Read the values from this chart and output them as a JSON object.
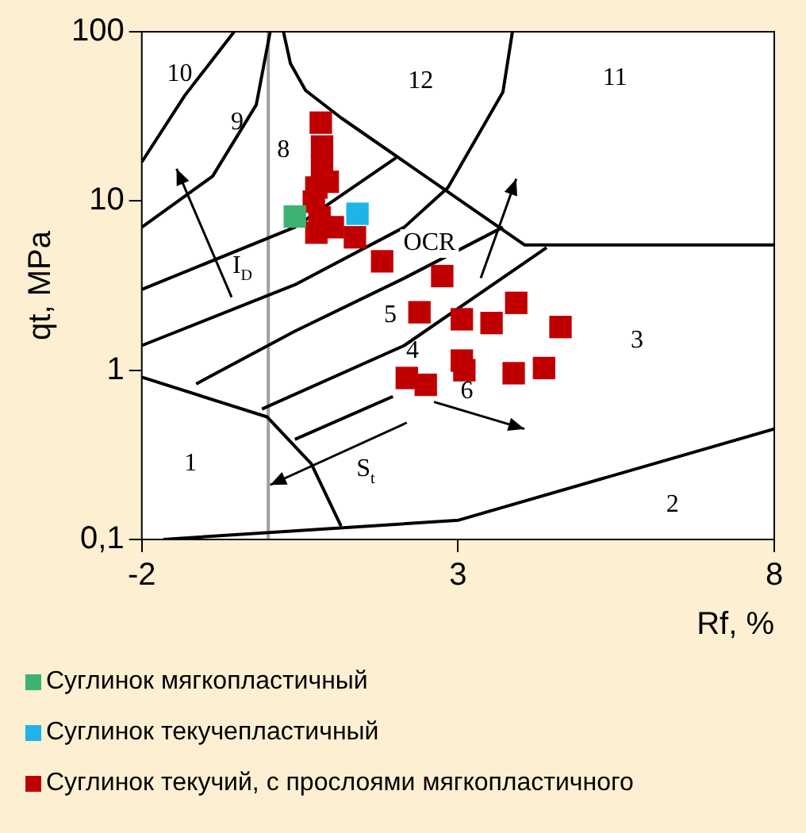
{
  "chart_data": {
    "type": "scatter",
    "xlabel": "Rf, %",
    "ylabel": "qt, MPa",
    "log": "y",
    "xlim": [
      -2,
      8
    ],
    "xticks": [
      -2,
      3,
      8
    ],
    "ylim": [
      0.1,
      100
    ],
    "yticks": [
      {
        "value": 0.1,
        "label": "0,1"
      },
      1,
      10,
      100
    ],
    "legend": "bottom",
    "marker": "square",
    "ref_lines": [
      {
        "axis": "x",
        "value": 0,
        "label": null,
        "color": "#a0a0a0"
      }
    ],
    "annotations": [
      "10",
      "9",
      "8",
      "12",
      "11",
      "5",
      "4",
      "3",
      "6",
      "1",
      "2",
      "I$_{D}$",
      "OCR",
      "S$_{t}$"
    ],
    "series": [
      {
        "type": "line",
        "marker": "none",
        "color": "#000000",
        "x": [
          -2,
          -0.02,
          0.68,
          1.15
        ],
        "values": [
          0.91,
          0.53,
          0.28,
          0.12
        ]
      },
      {
        "type": "line",
        "marker": "none",
        "color": "#000000",
        "x": [
          -1.66,
          3.01,
          8
        ],
        "values": [
          0.1,
          0.13,
          0.45
        ]
      },
      {
        "type": "line",
        "marker": "none",
        "color": "#000000",
        "x": [
          0.24,
          0.35,
          0.59,
          1.15,
          4.05,
          8
        ],
        "values": [
          100,
          65,
          45,
          31,
          5.5,
          5.5
        ]
      },
      {
        "type": "line",
        "marker": "none",
        "color": "#000000",
        "x": [
          -2,
          -1.32,
          -0.54
        ],
        "values": [
          17,
          42,
          100
        ]
      },
      {
        "type": "line",
        "marker": "none",
        "color": "#000000",
        "x": [
          -2,
          -0.88,
          -0.19,
          0.03
        ],
        "values": [
          7,
          14,
          37,
          100
        ]
      },
      {
        "type": "line",
        "marker": "none",
        "color": "#000000",
        "x": [
          -2,
          0.42,
          2.02
        ],
        "values": [
          3,
          7,
          18
        ]
      },
      {
        "type": "line",
        "marker": "none",
        "color": "#000000",
        "x": [
          -2,
          0.42,
          2.15,
          2.84,
          3.71,
          3.86
        ],
        "values": [
          1.4,
          3.2,
          7,
          12,
          44,
          100
        ]
      },
      {
        "type": "line",
        "marker": "none",
        "color": "#000000",
        "x": [
          -1.14,
          0.42,
          2.15,
          3.71
        ],
        "values": [
          0.83,
          1.7,
          3.5,
          7
        ]
      },
      {
        "type": "line",
        "marker": "none",
        "color": "#000000",
        "x": [
          -0.1,
          2.15,
          4.4
        ],
        "values": [
          0.59,
          1.4,
          5.3
        ]
      },
      {
        "type": "line",
        "marker": "none",
        "color": "#000000",
        "x": [
          0.42,
          1.97
        ],
        "values": [
          0.39,
          0.7
        ]
      },
      {
        "name": "Суглинок мягкопластичный",
        "color": "#3cb371",
        "x": [
          0.42
        ],
        "values": [
          8.1
        ]
      },
      {
        "name": "Суглинок текучепластичный",
        "color": "#1eb4e6",
        "x": [
          1.41
        ],
        "values": [
          8.4
        ]
      },
      {
        "name": "Суглинок текучий, с прослоями мягкопластичного",
        "color": "#c00000",
        "x": [
          0.83,
          0.85,
          0.85,
          0.94,
          0.76,
          0.72,
          0.81,
          0.76,
          1.02,
          1.37,
          1.8,
          2.75,
          2.39,
          3.06,
          3.53,
          3.92,
          4.62,
          2.19,
          2.49,
          3.06,
          3.1,
          3.88,
          4.36
        ],
        "values": [
          29,
          21,
          16,
          13,
          12,
          9.9,
          8,
          6.5,
          7,
          6.1,
          4.4,
          3.6,
          2.2,
          2,
          1.9,
          2.5,
          1.8,
          0.9,
          0.82,
          1.14,
          1,
          0.96,
          1.03
        ]
      }
    ]
  }
}
